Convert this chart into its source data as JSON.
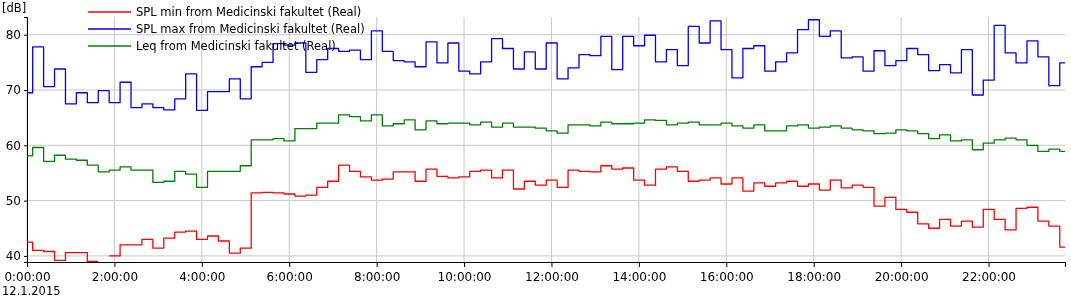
{
  "chart_data": {
    "type": "step",
    "ylabel": "[dB]",
    "annotations": [
      "12.1.2015"
    ],
    "x": [
      0,
      0.13,
      0.38,
      0.63,
      0.88,
      1.13,
      1.38,
      1.63,
      1.88,
      2.13,
      2.38,
      2.63,
      2.88,
      3.13,
      3.38,
      3.63,
      3.88,
      4.13,
      4.38,
      4.63,
      4.88,
      5.13,
      5.38,
      5.63,
      5.88,
      6.13,
      6.38,
      6.63,
      6.88,
      7.13,
      7.38,
      7.63,
      7.88,
      8.13,
      8.38,
      8.63,
      8.88,
      9.13,
      9.38,
      9.63,
      9.88,
      10.13,
      10.38,
      10.63,
      10.88,
      11.13,
      11.38,
      11.63,
      11.88,
      12.13,
      12.38,
      12.63,
      12.88,
      13.13,
      13.38,
      13.63,
      13.88,
      14.13,
      14.38,
      14.63,
      14.88,
      15.13,
      15.38,
      15.63,
      15.88,
      16.13,
      16.38,
      16.63,
      16.88,
      17.13,
      17.38,
      17.63,
      17.88,
      18.13,
      18.38,
      18.63,
      18.88,
      19.13,
      19.38,
      19.63,
      19.88,
      20.13,
      20.38,
      20.63,
      20.88,
      21.13,
      21.38,
      21.63,
      21.88,
      22.13,
      22.38,
      22.63,
      22.88,
      23.13,
      23.38,
      23.63
    ],
    "series": [
      {
        "name": "SPL min from Medicinski fakultet (Real)",
        "color": "#ff0000",
        "values": [
          42.5,
          41.0,
          40.8,
          39.2,
          40.6,
          40.6,
          39.0,
          null,
          40.0,
          42.0,
          42.0,
          43.0,
          41.4,
          43.2,
          44.3,
          44.5,
          43.0,
          43.6,
          42.7,
          40.5,
          41.4,
          51.4,
          51.5,
          51.4,
          51.2,
          50.8,
          51.0,
          52.4,
          53.5,
          56.4,
          55.3,
          54.3,
          53.7,
          53.9,
          55.2,
          55.2,
          53.5,
          55.7,
          54.4,
          54.1,
          54.3,
          55.3,
          55.5,
          54.1,
          55.5,
          52.1,
          53.5,
          52.8,
          53.7,
          52.4,
          55.5,
          55.3,
          55.2,
          56.3,
          55.7,
          55.9,
          53.7,
          52.8,
          55.7,
          56.1,
          55.3,
          53.5,
          53.7,
          54.1,
          53.0,
          54.1,
          51.7,
          53.2,
          52.6,
          53.2,
          53.5,
          52.6,
          53.0,
          51.9,
          53.7,
          52.3,
          52.8,
          52.4,
          49.0,
          50.6,
          48.4,
          47.9,
          45.8,
          45.0,
          46.6,
          45.4,
          46.3,
          45.2,
          48.4,
          46.6,
          44.7,
          48.6,
          48.8,
          46.3,
          45.4,
          41.6
        ]
      },
      {
        "name": "SPL max from Medicinski fakultet (Real)",
        "color": "#0000ff",
        "values": [
          69.5,
          77.8,
          70.6,
          73.8,
          67.5,
          69.5,
          67.7,
          69.9,
          67.7,
          71.4,
          66.8,
          67.5,
          66.8,
          66.4,
          68.4,
          72.9,
          66.3,
          69.7,
          69.7,
          72.0,
          68.4,
          74.2,
          75.0,
          78.4,
          78.1,
          78.5,
          73.2,
          75.5,
          77.5,
          77.0,
          77.2,
          75.5,
          80.7,
          77.0,
          75.3,
          75.1,
          74.2,
          78.7,
          74.9,
          78.5,
          73.4,
          72.9,
          75.1,
          79.3,
          77.5,
          73.8,
          76.9,
          73.8,
          78.5,
          72.0,
          74.0,
          76.4,
          76.2,
          79.7,
          73.7,
          79.7,
          78.0,
          79.9,
          75.1,
          77.3,
          74.4,
          81.5,
          78.5,
          82.5,
          77.3,
          72.2,
          77.5,
          78.0,
          73.4,
          75.1,
          76.7,
          80.9,
          82.7,
          79.7,
          80.7,
          75.8,
          76.0,
          73.4,
          77.1,
          74.4,
          75.3,
          77.5,
          76.4,
          73.5,
          74.6,
          73.1,
          77.3,
          69.1,
          71.8,
          81.7,
          76.7,
          74.9,
          78.9,
          76.0,
          70.8,
          74.9
        ]
      },
      {
        "name": "Leq from Medicinski fakultet (Real)",
        "color": "#008000",
        "values": [
          58.1,
          59.6,
          57.1,
          58.2,
          57.5,
          57.3,
          56.4,
          55.2,
          55.5,
          56.1,
          55.5,
          55.5,
          53.3,
          53.5,
          55.3,
          54.8,
          52.4,
          55.3,
          55.3,
          55.3,
          56.3,
          61.0,
          61.0,
          61.2,
          60.8,
          63.0,
          63.0,
          64.0,
          64.0,
          65.5,
          65.2,
          64.4,
          65.5,
          63.5,
          63.9,
          64.6,
          62.8,
          64.4,
          63.9,
          64.0,
          64.0,
          63.7,
          64.2,
          63.3,
          64.0,
          63.3,
          63.3,
          63.1,
          62.6,
          62.2,
          63.7,
          63.7,
          63.5,
          64.2,
          63.9,
          63.9,
          64.0,
          64.6,
          64.5,
          63.7,
          64.0,
          64.2,
          63.7,
          63.7,
          64.0,
          63.5,
          63.1,
          63.7,
          62.6,
          62.6,
          63.5,
          63.7,
          63.1,
          63.3,
          63.5,
          63.1,
          62.8,
          62.6,
          62.1,
          62.2,
          62.8,
          62.6,
          62.1,
          61.2,
          61.9,
          60.8,
          61.0,
          59.2,
          60.4,
          61.0,
          61.3,
          61.0,
          60.0,
          58.9,
          59.3,
          58.9
        ]
      }
    ],
    "xlim": [
      0,
      23.75
    ],
    "xticks": [
      {
        "value": 0,
        "label": "0:00:00"
      },
      {
        "value": 2,
        "label": "2:00:00"
      },
      {
        "value": 4,
        "label": "4:00:00"
      },
      {
        "value": 6,
        "label": "6:00:00"
      },
      {
        "value": 8,
        "label": "8:00:00"
      },
      {
        "value": 10,
        "label": "10:00:00"
      },
      {
        "value": 12,
        "label": "12:00:00"
      },
      {
        "value": 14,
        "label": "14:00:00"
      },
      {
        "value": 16,
        "label": "16:00:00"
      },
      {
        "value": 18,
        "label": "18:00:00"
      },
      {
        "value": 20,
        "label": "20:00:00"
      },
      {
        "value": 22,
        "label": "22:00:00"
      }
    ],
    "ylim": [
      38.9,
      83.2
    ],
    "yticks": [
      40,
      50,
      60,
      70,
      80
    ],
    "grid": true,
    "legend": "top left"
  }
}
